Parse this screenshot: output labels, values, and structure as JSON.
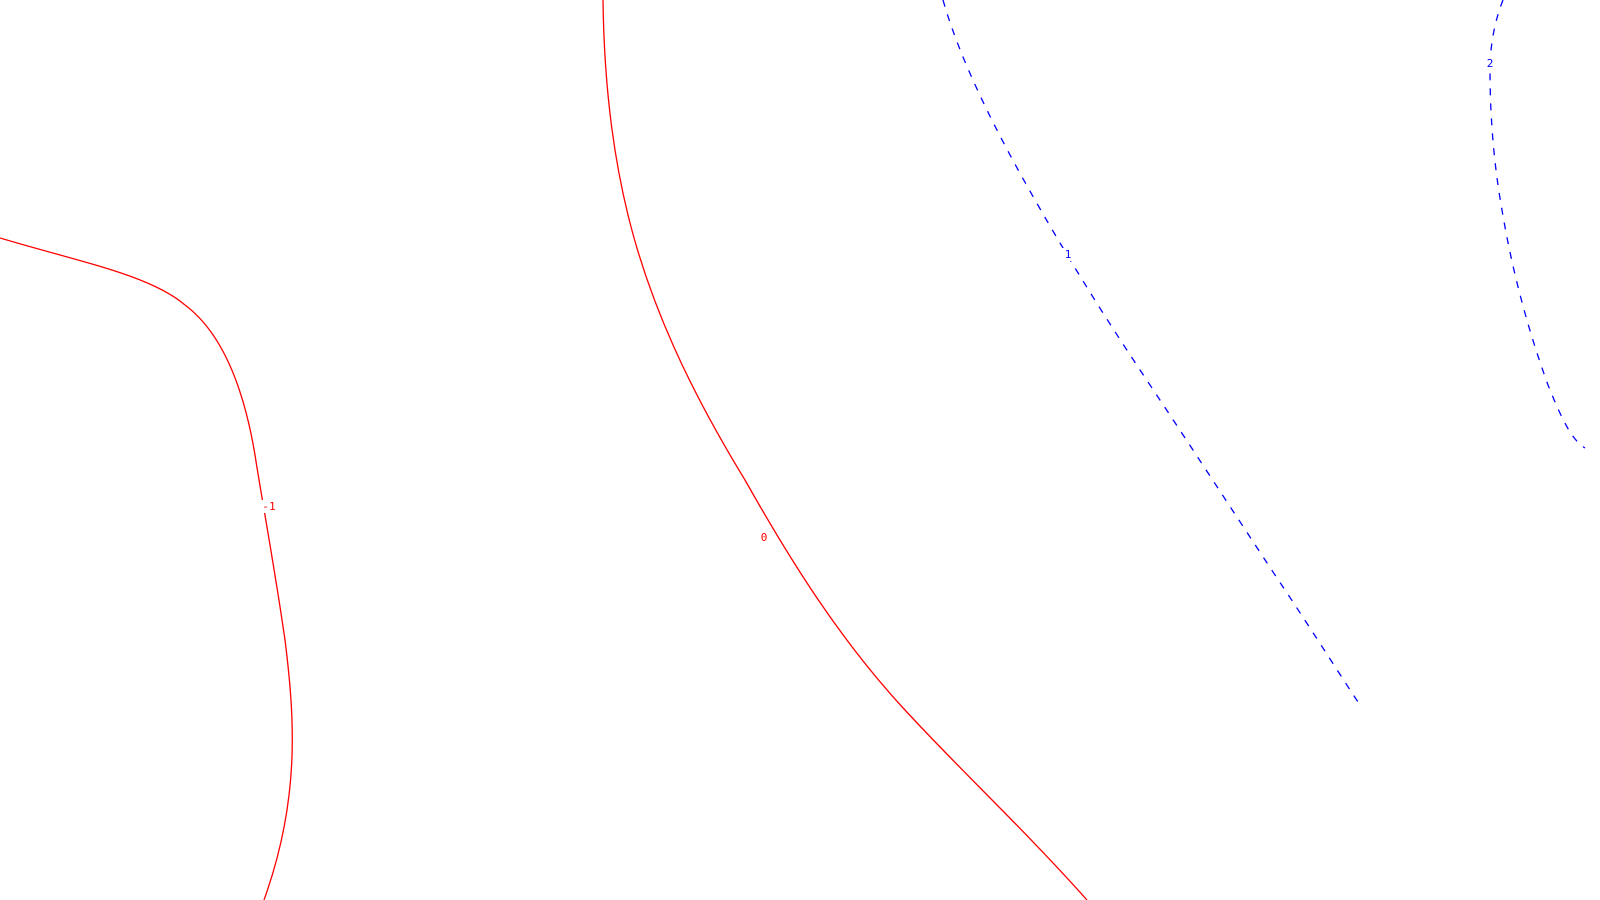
{
  "chart_data": {
    "type": "contour",
    "title": "",
    "xlabel": "",
    "ylabel": "",
    "grid": false,
    "legend": "none",
    "colors": {
      "negative": "#ff0000",
      "zero": "#ff0000",
      "positive": "#0000ff"
    },
    "contours": [
      {
        "level": -1,
        "label": "-1",
        "style": "solid",
        "color": "#ff0000"
      },
      {
        "level": 0,
        "label": "0",
        "style": "solid",
        "color": "#ff0000"
      },
      {
        "level": 1,
        "label": "1",
        "style": "dashed",
        "color": "#0000ff"
      },
      {
        "level": 2,
        "label": "2",
        "style": "dashed",
        "color": "#0000ff"
      }
    ]
  }
}
